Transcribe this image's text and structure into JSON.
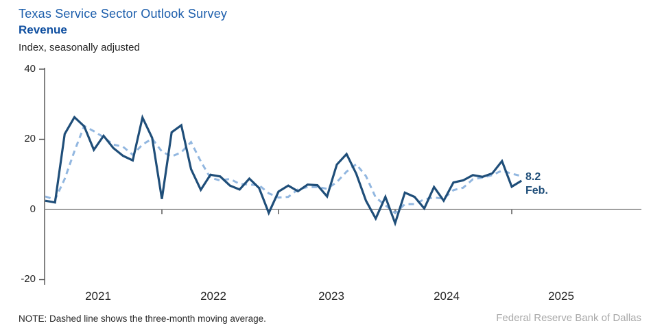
{
  "header": {
    "survey_title": "Texas Service Sector Outlook Survey",
    "chart_title": "Revenue",
    "units_label": "Index, seasonally adjusted"
  },
  "chart_data": {
    "type": "line",
    "title": "Texas Service Sector Outlook Survey — Revenue",
    "xlabel": "",
    "ylabel": "Index, seasonally adjusted",
    "ylim": [
      -20,
      40
    ],
    "y_ticks": [
      "40",
      "20",
      "0",
      "-20"
    ],
    "y_tick_values": [
      40,
      20,
      0,
      -20
    ],
    "year_labels": [
      "2021",
      "2022",
      "2023",
      "2024",
      "2025"
    ],
    "x_start_month": "2021-01",
    "x_end_month": "2025-02",
    "grid": "off",
    "legend_position": "none",
    "series": [
      {
        "name": "monthly index",
        "style": "solid",
        "color": "#1F4E79",
        "values": [
          2.5,
          2.0,
          21.5,
          26.3,
          23.7,
          17.0,
          21.0,
          17.5,
          15.3,
          14.0,
          26.2,
          20.4,
          3.0,
          22.0,
          24.0,
          11.5,
          5.6,
          9.9,
          9.4,
          6.8,
          5.7,
          8.8,
          6.1,
          -1.0,
          5.1,
          6.8,
          5.2,
          7.1,
          6.9,
          3.7,
          12.8,
          15.8,
          10.2,
          2.5,
          -2.6,
          3.6,
          -3.9,
          4.8,
          3.6,
          0.3,
          6.4,
          2.5,
          7.7,
          8.3,
          9.8,
          9.3,
          10.3,
          13.8,
          6.5,
          8.2
        ]
      },
      {
        "name": "three-month moving average",
        "style": "dashed",
        "color": "#92B7E0",
        "values": [
          3.7,
          2.8,
          8.7,
          16.6,
          23.8,
          22.3,
          20.6,
          18.5,
          17.9,
          15.6,
          18.5,
          20.2,
          16.5,
          15.1,
          16.3,
          19.2,
          13.7,
          9.0,
          8.3,
          8.7,
          7.3,
          7.1,
          6.9,
          4.6,
          3.4,
          3.6,
          5.7,
          6.4,
          6.4,
          5.9,
          7.8,
          10.8,
          12.9,
          9.5,
          3.4,
          1.2,
          -1.0,
          1.5,
          1.5,
          2.9,
          3.4,
          3.1,
          5.5,
          6.2,
          8.6,
          9.1,
          9.8,
          11.1,
          10.2,
          9.5
        ]
      }
    ],
    "annotation": {
      "value_label": "8.2",
      "month_label": "Feb."
    }
  },
  "note": "NOTE: Dashed line shows the three-month  moving average.",
  "footer": "Federal Reserve Bank of Dallas",
  "colors": {
    "solid_line": "#1F4E79",
    "dashed_line": "#92B7E0",
    "title_blue": "#1b5dab",
    "axis_gray": "#4d4d4d",
    "zero_line_gray": "#808080",
    "footer_gray": "#a9a9a9"
  }
}
